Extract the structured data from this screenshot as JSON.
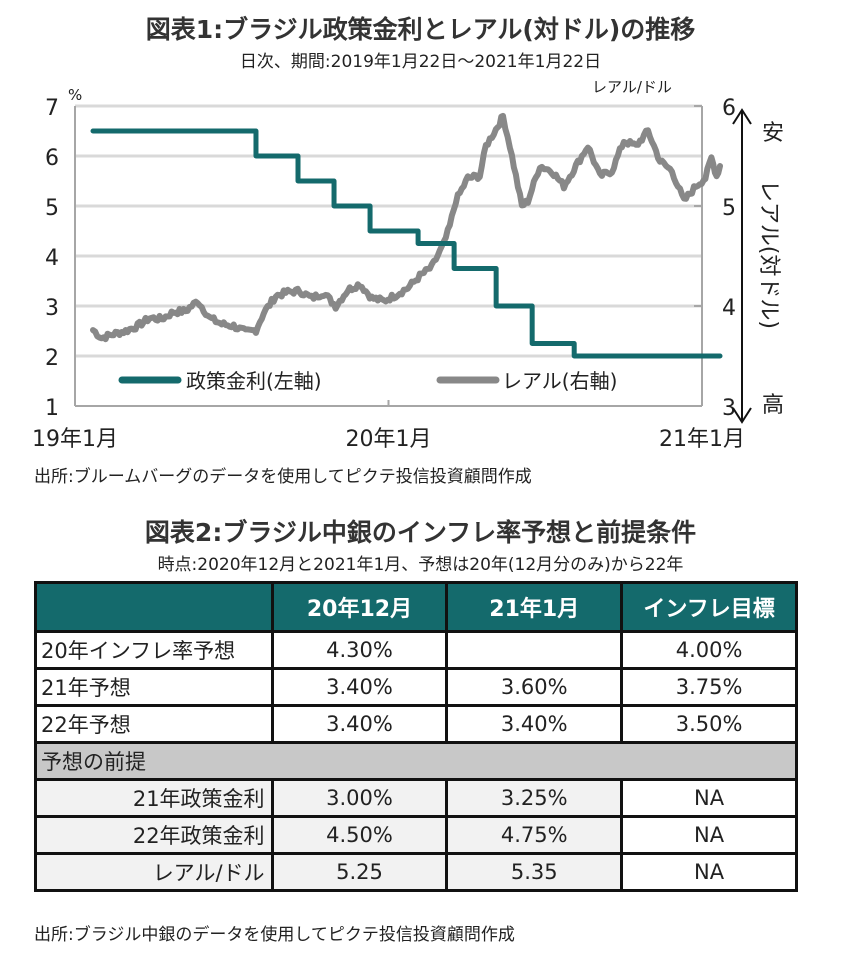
{
  "figure1": {
    "title": "図表1:ブラジル政策金利とレアル(対ドル)の推移",
    "subtitle": "日次、期間:2019年1月22日〜2021年1月22日",
    "source": "出所:ブルームバーグのデータを使用してピクテ投信投資顧問作成"
  },
  "chart_data": {
    "type": "line",
    "title": "図表1:ブラジル政策金利とレアル(対ドル)の推移",
    "subtitle": "日次、期間:2019年1月22日〜2021年1月22日",
    "xlabel": "",
    "x_ticks": [
      "19年1月",
      "20年1月",
      "21年1月"
    ],
    "x_range": [
      "2019-01-22",
      "2021-01-22"
    ],
    "y_left": {
      "label": "%",
      "ticks": [
        "1",
        "2",
        "3",
        "4",
        "5",
        "6",
        "7"
      ],
      "range": [
        1,
        7
      ]
    },
    "y_right": {
      "label": "レアル/ドル",
      "ticks": [
        "3",
        "4",
        "5",
        "6"
      ],
      "range": [
        3,
        6
      ],
      "annotation_top": "安",
      "annotation_bottom": "高",
      "annotation_side": "レアル(対ドル)"
    },
    "grid": true,
    "legend": {
      "placement": "bottom-inside",
      "entries": [
        "政策金利(左軸)",
        "レアル(右軸)"
      ]
    },
    "colors": {
      "policy_rate": "#146a6c",
      "real": "#888888",
      "grid": "#d9d9d9",
      "axis": "#a6a6a6"
    },
    "series": [
      {
        "name": "政策金利(左軸)",
        "axis": "left",
        "step": true,
        "points": [
          [
            "2019-01-22",
            6.5
          ],
          [
            "2019-07-31",
            6.0
          ],
          [
            "2019-09-18",
            5.5
          ],
          [
            "2019-10-30",
            5.0
          ],
          [
            "2019-12-11",
            4.5
          ],
          [
            "2020-02-05",
            4.25
          ],
          [
            "2020-03-18",
            3.75
          ],
          [
            "2020-05-06",
            3.0
          ],
          [
            "2020-06-17",
            2.25
          ],
          [
            "2020-08-05",
            2.0
          ],
          [
            "2021-01-22",
            2.0
          ]
        ]
      },
      {
        "name": "レアル(右軸)",
        "axis": "right",
        "points": [
          [
            "2019-01-22",
            3.76
          ],
          [
            "2019-02-01",
            3.68
          ],
          [
            "2019-02-15",
            3.72
          ],
          [
            "2019-03-01",
            3.75
          ],
          [
            "2019-03-15",
            3.8
          ],
          [
            "2019-03-29",
            3.88
          ],
          [
            "2019-04-12",
            3.87
          ],
          [
            "2019-04-26",
            3.94
          ],
          [
            "2019-05-10",
            3.95
          ],
          [
            "2019-05-24",
            4.05
          ],
          [
            "2019-06-07",
            3.88
          ],
          [
            "2019-06-21",
            3.82
          ],
          [
            "2019-07-05",
            3.8
          ],
          [
            "2019-07-19",
            3.74
          ],
          [
            "2019-07-31",
            3.76
          ],
          [
            "2019-08-09",
            3.93
          ],
          [
            "2019-08-23",
            4.1
          ],
          [
            "2019-09-06",
            4.14
          ],
          [
            "2019-09-20",
            4.15
          ],
          [
            "2019-10-04",
            4.08
          ],
          [
            "2019-10-18",
            4.13
          ],
          [
            "2019-11-01",
            4.0
          ],
          [
            "2019-11-15",
            4.16
          ],
          [
            "2019-11-29",
            4.22
          ],
          [
            "2019-12-13",
            4.08
          ],
          [
            "2019-12-27",
            4.05
          ],
          [
            "2020-01-10",
            4.11
          ],
          [
            "2020-01-24",
            4.18
          ],
          [
            "2020-02-07",
            4.3
          ],
          [
            "2020-02-21",
            4.39
          ],
          [
            "2020-03-06",
            4.62
          ],
          [
            "2020-03-13",
            4.8
          ],
          [
            "2020-03-20",
            5.05
          ],
          [
            "2020-04-03",
            5.28
          ],
          [
            "2020-04-17",
            5.3
          ],
          [
            "2020-04-24",
            5.6
          ],
          [
            "2020-05-08",
            5.8
          ],
          [
            "2020-05-14",
            5.9
          ],
          [
            "2020-05-22",
            5.6
          ],
          [
            "2020-06-05",
            5.0
          ],
          [
            "2020-06-12",
            5.05
          ],
          [
            "2020-06-26",
            5.4
          ],
          [
            "2020-07-10",
            5.35
          ],
          [
            "2020-07-24",
            5.2
          ],
          [
            "2020-08-07",
            5.4
          ],
          [
            "2020-08-21",
            5.6
          ],
          [
            "2020-09-04",
            5.3
          ],
          [
            "2020-09-18",
            5.35
          ],
          [
            "2020-10-02",
            5.65
          ],
          [
            "2020-10-16",
            5.6
          ],
          [
            "2020-10-30",
            5.75
          ],
          [
            "2020-11-13",
            5.45
          ],
          [
            "2020-11-27",
            5.35
          ],
          [
            "2020-12-11",
            5.05
          ],
          [
            "2020-12-25",
            5.2
          ],
          [
            "2021-01-05",
            5.28
          ],
          [
            "2021-01-12",
            5.48
          ],
          [
            "2021-01-18",
            5.3
          ],
          [
            "2021-01-22",
            5.4
          ]
        ]
      }
    ]
  },
  "figure2": {
    "title": "図表2:ブラジル中銀のインフレ率予想と前提条件",
    "subtitle": "時点:2020年12月と2021年1月、予想は20年(12月分のみ)から22年",
    "source": "出所:ブラジル中銀のデータを使用してピクテ投信投資顧問作成",
    "table": {
      "headers": [
        "",
        "20年12月",
        "21年1月",
        "インフレ目標"
      ],
      "rows": [
        [
          "20年インフレ率予想",
          "4.30%",
          "",
          "4.00%"
        ],
        [
          "21年予想",
          "3.40%",
          "3.60%",
          "3.75%"
        ],
        [
          "22年予想",
          "3.40%",
          "3.40%",
          "3.50%"
        ]
      ],
      "section_label": "予想の前提",
      "section_rows": [
        [
          "21年政策金利",
          "3.00%",
          "3.25%",
          "NA"
        ],
        [
          "22年政策金利",
          "4.50%",
          "4.75%",
          "NA"
        ],
        [
          "レアル/ドル",
          "5.25",
          "5.35",
          "NA"
        ]
      ]
    }
  }
}
